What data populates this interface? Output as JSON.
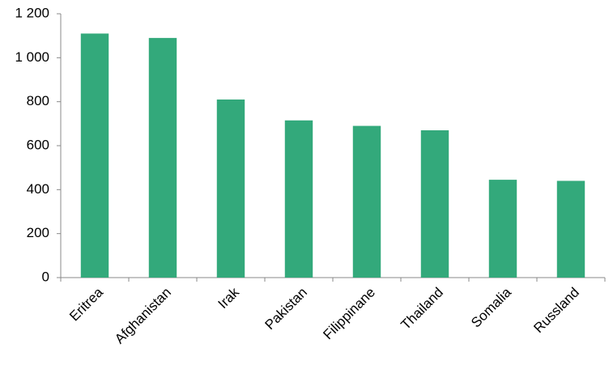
{
  "chart_data": {
    "type": "bar",
    "categories": [
      "Eritrea",
      "Afghanistan",
      "Irak",
      "Pakistan",
      "Filippinane",
      "Thailand",
      "Somalia",
      "Russland"
    ],
    "values": [
      1110,
      1090,
      810,
      715,
      690,
      670,
      445,
      440
    ],
    "color": "#33a97b",
    "ylim": [
      0,
      1200
    ],
    "yticks": [
      0,
      200,
      400,
      600,
      800,
      {
        "value": 1000,
        "label": "1 000"
      },
      {
        "value": 1200,
        "label": "1 200"
      }
    ],
    "grid": false
  }
}
